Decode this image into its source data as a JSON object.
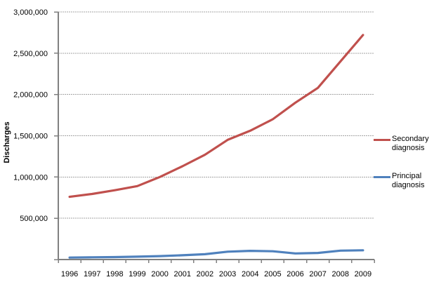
{
  "chart_data": {
    "type": "line",
    "title": "",
    "ylabel": "Discharges",
    "xlabel": "",
    "x_labels": [
      "1996",
      "1997",
      "1998",
      "1999",
      "2000",
      "2001",
      "2002",
      "2003",
      "2004",
      "2005",
      "2006",
      "2007",
      "2008",
      "2009"
    ],
    "series": [
      {
        "name": "Secondary diagnosis",
        "color": "#c0504d",
        "values": [
          760000,
          795000,
          840000,
          890000,
          1000000,
          1130000,
          1270000,
          1450000,
          1560000,
          1700000,
          1900000,
          2080000,
          2400000,
          2720000
        ]
      },
      {
        "name": "Principal diagnosis",
        "color": "#4f81bd",
        "values": [
          24000,
          27000,
          30000,
          35000,
          42000,
          52000,
          65000,
          95000,
          105000,
          100000,
          74000,
          80000,
          108000,
          112000
        ]
      }
    ],
    "ylim": [
      0,
      3000000
    ],
    "yticks": [
      {
        "value": 500000,
        "label": "500,000"
      },
      {
        "value": 1000000,
        "label": "1,000,000"
      },
      {
        "value": 1500000,
        "label": "1,500,000"
      },
      {
        "value": 2000000,
        "label": "2,000,000"
      },
      {
        "value": 2500000,
        "label": "2,500,000"
      },
      {
        "value": 3000000,
        "label": "3,000,000"
      }
    ],
    "grid": true,
    "legend_position": "right"
  },
  "colors": {
    "axis": "#808080",
    "gridline": "#a3a3a3",
    "text": "#000000",
    "background": "#ffffff"
  }
}
